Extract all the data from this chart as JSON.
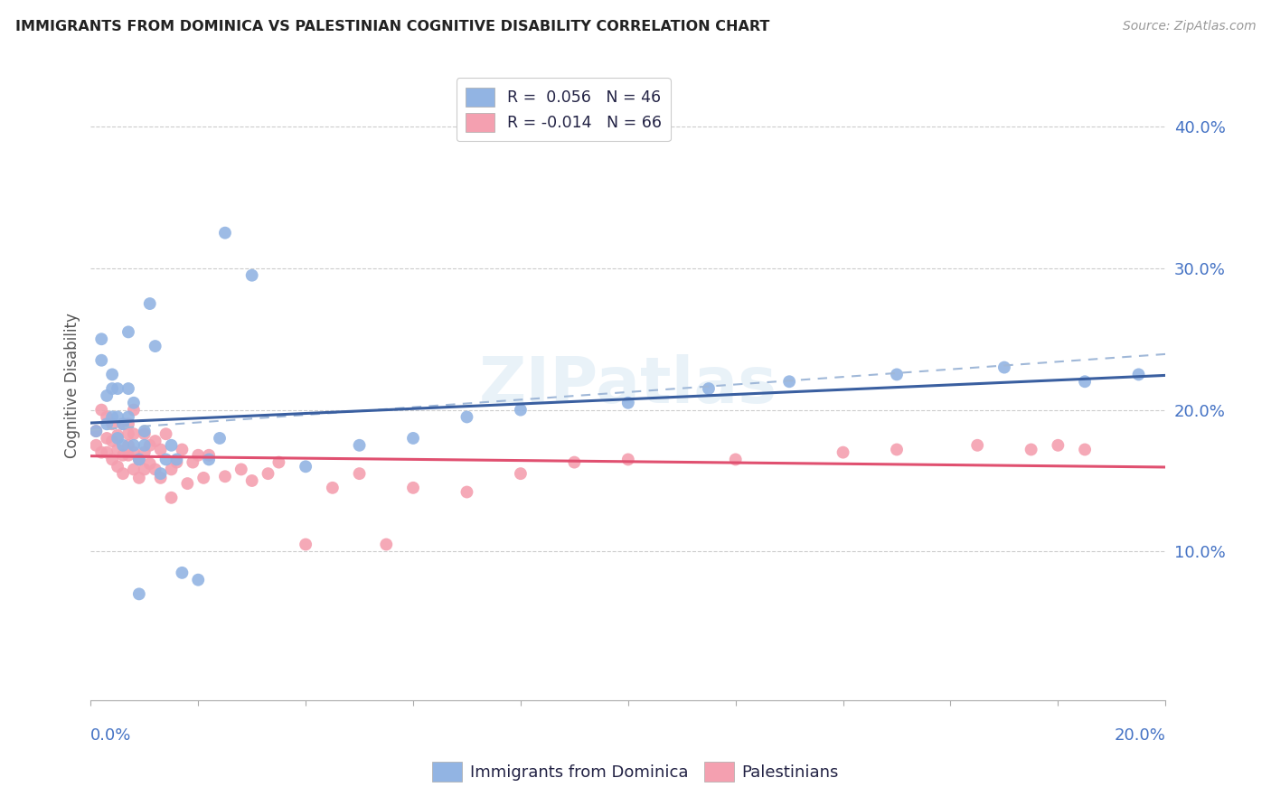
{
  "title": "IMMIGRANTS FROM DOMINICA VS PALESTINIAN COGNITIVE DISABILITY CORRELATION CHART",
  "source": "Source: ZipAtlas.com",
  "ylabel": "Cognitive Disability",
  "xlim": [
    0.0,
    0.2
  ],
  "ylim": [
    -0.005,
    0.44
  ],
  "legend_r1": "R =  0.056   N = 46",
  "legend_r2": "R = -0.014   N = 66",
  "color_blue": "#92b4e3",
  "color_pink": "#f4a0b0",
  "line_blue": "#3a5fa0",
  "line_pink": "#e05070",
  "line_dash": "#a0b8d8",
  "watermark": "ZIPatlas",
  "dominica_x": [
    0.001,
    0.002,
    0.002,
    0.003,
    0.003,
    0.004,
    0.004,
    0.004,
    0.005,
    0.005,
    0.005,
    0.006,
    0.006,
    0.007,
    0.007,
    0.007,
    0.008,
    0.008,
    0.009,
    0.009,
    0.01,
    0.01,
    0.011,
    0.012,
    0.013,
    0.014,
    0.015,
    0.016,
    0.017,
    0.02,
    0.022,
    0.024,
    0.025,
    0.03,
    0.04,
    0.05,
    0.06,
    0.07,
    0.08,
    0.1,
    0.115,
    0.13,
    0.15,
    0.17,
    0.185,
    0.195
  ],
  "dominica_y": [
    0.185,
    0.235,
    0.25,
    0.19,
    0.21,
    0.195,
    0.215,
    0.225,
    0.18,
    0.195,
    0.215,
    0.175,
    0.19,
    0.195,
    0.215,
    0.255,
    0.175,
    0.205,
    0.165,
    0.07,
    0.175,
    0.185,
    0.275,
    0.245,
    0.155,
    0.165,
    0.175,
    0.165,
    0.085,
    0.08,
    0.165,
    0.18,
    0.325,
    0.295,
    0.16,
    0.175,
    0.18,
    0.195,
    0.2,
    0.205,
    0.215,
    0.22,
    0.225,
    0.23,
    0.22,
    0.225
  ],
  "palestinian_x": [
    0.001,
    0.001,
    0.002,
    0.002,
    0.003,
    0.003,
    0.003,
    0.004,
    0.004,
    0.004,
    0.005,
    0.005,
    0.005,
    0.006,
    0.006,
    0.006,
    0.007,
    0.007,
    0.007,
    0.007,
    0.008,
    0.008,
    0.008,
    0.008,
    0.009,
    0.009,
    0.01,
    0.01,
    0.01,
    0.011,
    0.011,
    0.012,
    0.012,
    0.013,
    0.013,
    0.014,
    0.015,
    0.015,
    0.016,
    0.017,
    0.018,
    0.019,
    0.02,
    0.021,
    0.022,
    0.025,
    0.028,
    0.03,
    0.033,
    0.035,
    0.04,
    0.045,
    0.05,
    0.055,
    0.06,
    0.07,
    0.08,
    0.09,
    0.1,
    0.12,
    0.14,
    0.15,
    0.165,
    0.175,
    0.18,
    0.185
  ],
  "palestinian_y": [
    0.175,
    0.185,
    0.17,
    0.2,
    0.17,
    0.18,
    0.195,
    0.165,
    0.178,
    0.19,
    0.16,
    0.172,
    0.182,
    0.155,
    0.168,
    0.19,
    0.168,
    0.175,
    0.183,
    0.19,
    0.158,
    0.17,
    0.183,
    0.2,
    0.152,
    0.165,
    0.158,
    0.17,
    0.183,
    0.162,
    0.175,
    0.158,
    0.178,
    0.152,
    0.172,
    0.183,
    0.138,
    0.158,
    0.163,
    0.172,
    0.148,
    0.163,
    0.168,
    0.152,
    0.168,
    0.153,
    0.158,
    0.15,
    0.155,
    0.163,
    0.105,
    0.145,
    0.155,
    0.105,
    0.145,
    0.142,
    0.155,
    0.163,
    0.165,
    0.165,
    0.17,
    0.172,
    0.175,
    0.172,
    0.175,
    0.172
  ]
}
